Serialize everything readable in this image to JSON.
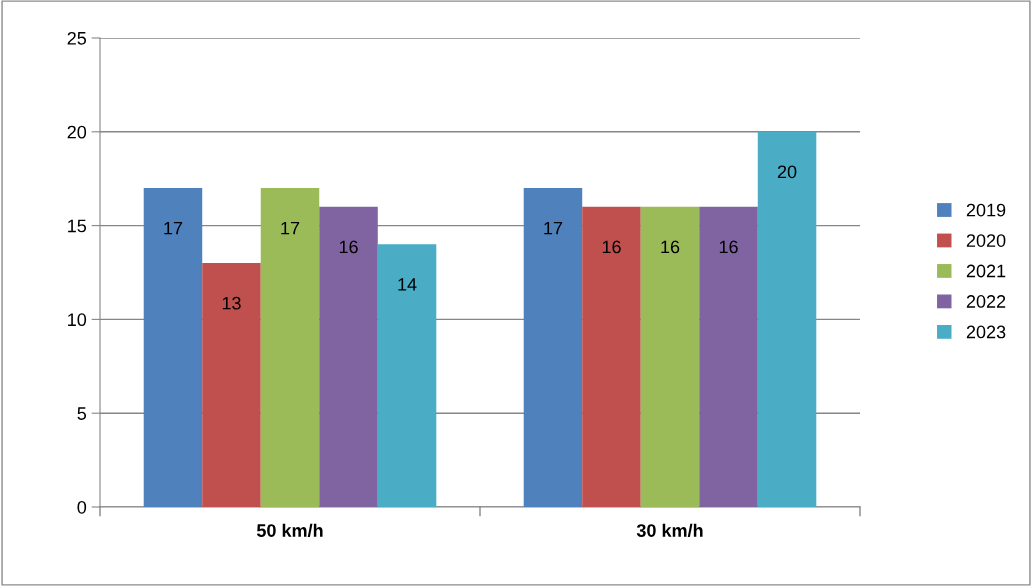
{
  "chart_data": {
    "type": "bar",
    "categories": [
      "50 km/h",
      "30 km/h"
    ],
    "series": [
      {
        "name": "2019",
        "color": "#4f81bd",
        "values": [
          17,
          17
        ]
      },
      {
        "name": "2020",
        "color": "#c0504d",
        "values": [
          13,
          16
        ]
      },
      {
        "name": "2021",
        "color": "#9bbb59",
        "values": [
          17,
          16
        ]
      },
      {
        "name": "2022",
        "color": "#8064a2",
        "values": [
          16,
          16
        ]
      },
      {
        "name": "2023",
        "color": "#4bacc6",
        "values": [
          14,
          20
        ]
      }
    ],
    "ylim": [
      0,
      25
    ],
    "yticks": [
      0,
      5,
      10,
      15,
      20,
      25
    ],
    "grid": "y",
    "legend": "right",
    "data_labels": true
  }
}
